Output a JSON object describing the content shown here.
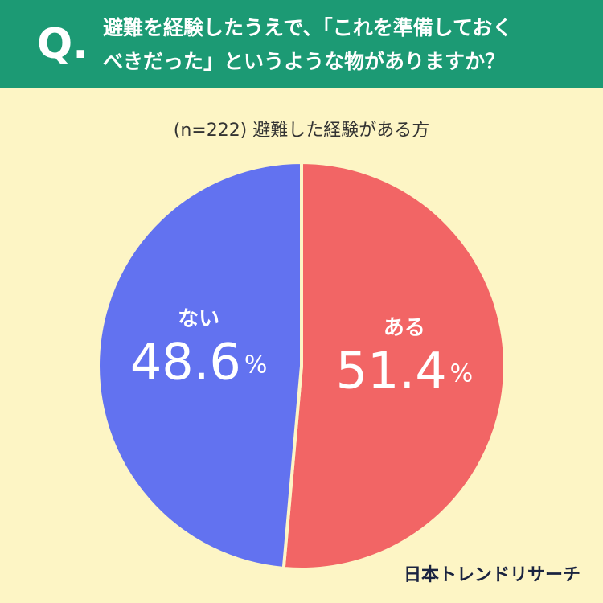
{
  "chart_data": {
    "type": "pie",
    "badge": "Q.",
    "title": [
      "避難を経験したうえで、「これを準備しておく",
      "べきだった」というような物がありますか？"
    ],
    "subtitle": "(n=222) 避難した経験がある方",
    "categories": [
      "ある",
      "ない"
    ],
    "values": [
      51.4,
      48.6
    ],
    "value_labels": [
      "51.4%",
      "48.6%"
    ],
    "colors": [
      "#f26565",
      "#6272f0"
    ],
    "source": "日本トレンドリサーチ"
  }
}
